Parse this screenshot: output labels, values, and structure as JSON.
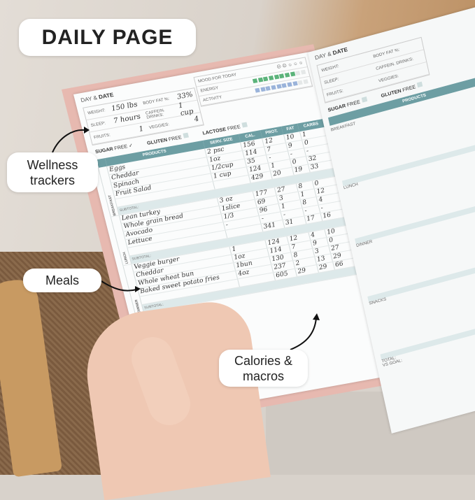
{
  "title": "DAILY PAGE",
  "callouts": {
    "wellness": "Wellness trackers",
    "meals": "Meals",
    "macros": "Calories & macros"
  },
  "planner": {
    "day_date_prefix": "DAY &",
    "day_date_bold": "DATE",
    "trackers": {
      "weight_label": "WEIGHT:",
      "weight": "150 lbs",
      "body_fat_label": "BODY FAT %:",
      "body_fat": "33%",
      "sleep_label": "SLEEP:",
      "sleep": "7 hours",
      "caffeine_label": "CAFFEIN. DRINKS:",
      "caffeine": "1 cup",
      "fruits_label": "FRUITS:",
      "fruits": "1",
      "veggies_label": "VEGGIES:",
      "veggies": "4"
    },
    "mood_label": "MOOD FOR TODAY",
    "energy_label": "ENERGY",
    "activity_label": "ACTIVITY",
    "energy_level": 8,
    "activity_level": 8,
    "free": {
      "sugar_bold": "SUGAR",
      "gluten_bold": "GLUTEN",
      "lactose_bold": "LACTOSE",
      "free": "FREE",
      "sugar_checked": "✓"
    },
    "columns": [
      "PRODUCTS",
      "SERV. SIZE",
      "CAL.",
      "PROT.",
      "FAT",
      "CARBS"
    ],
    "subtotal_label": "SUBTOTAL:",
    "meals": [
      {
        "name": "BREAKFAST",
        "rows": [
          [
            "Eggs",
            "2 psc",
            "156",
            "12",
            "10",
            "1"
          ],
          [
            "Cheddar",
            "1oz",
            "114",
            "7",
            "9",
            "0"
          ],
          [
            "Spinach",
            "1/2cup",
            "35",
            "-",
            "-",
            "-"
          ],
          [
            "Fruit Salad",
            "1 cup",
            "124",
            "1",
            "0",
            "32"
          ]
        ],
        "subtotal": [
          "429",
          "20",
          "19",
          "33"
        ]
      },
      {
        "name": "LUNCH",
        "rows": [
          [
            "Lean turkey",
            "3 oz",
            "177",
            "27",
            "8",
            "0"
          ],
          [
            "Whole grain bread",
            "1slice",
            "69",
            "3",
            "1",
            "12"
          ],
          [
            "Avocado",
            "1/3",
            "96",
            "1",
            "8",
            "4"
          ],
          [
            "Lettuce",
            "-",
            "-",
            "-",
            "-",
            "-"
          ]
        ],
        "subtotal": [
          "341",
          "31",
          "17",
          "16"
        ]
      },
      {
        "name": "DINNER",
        "rows": [
          [
            "Veggie burger",
            "1",
            "124",
            "12",
            "4",
            "10"
          ],
          [
            "Cheddar",
            "1oz",
            "114",
            "7",
            "9",
            "0"
          ],
          [
            "Whole wheat bun",
            "1bun",
            "130",
            "8",
            "3",
            "27"
          ],
          [
            "Baked sweet potato fries",
            "4oz",
            "237",
            "2",
            "13",
            "29"
          ]
        ],
        "subtotal": [
          "605",
          "29",
          "29",
          "66"
        ]
      }
    ],
    "right_page": {
      "meal_labels": [
        "BREAKFAST",
        "LUNCH",
        "DINNER",
        "SNACKS"
      ],
      "total_label": "TOTAL:",
      "vs_goal_label": "VS GOAL:"
    }
  },
  "colors": {
    "header_teal": "#6d9ea3",
    "energy_green": "#5bb37a",
    "activity_blue": "#9ab3da"
  }
}
